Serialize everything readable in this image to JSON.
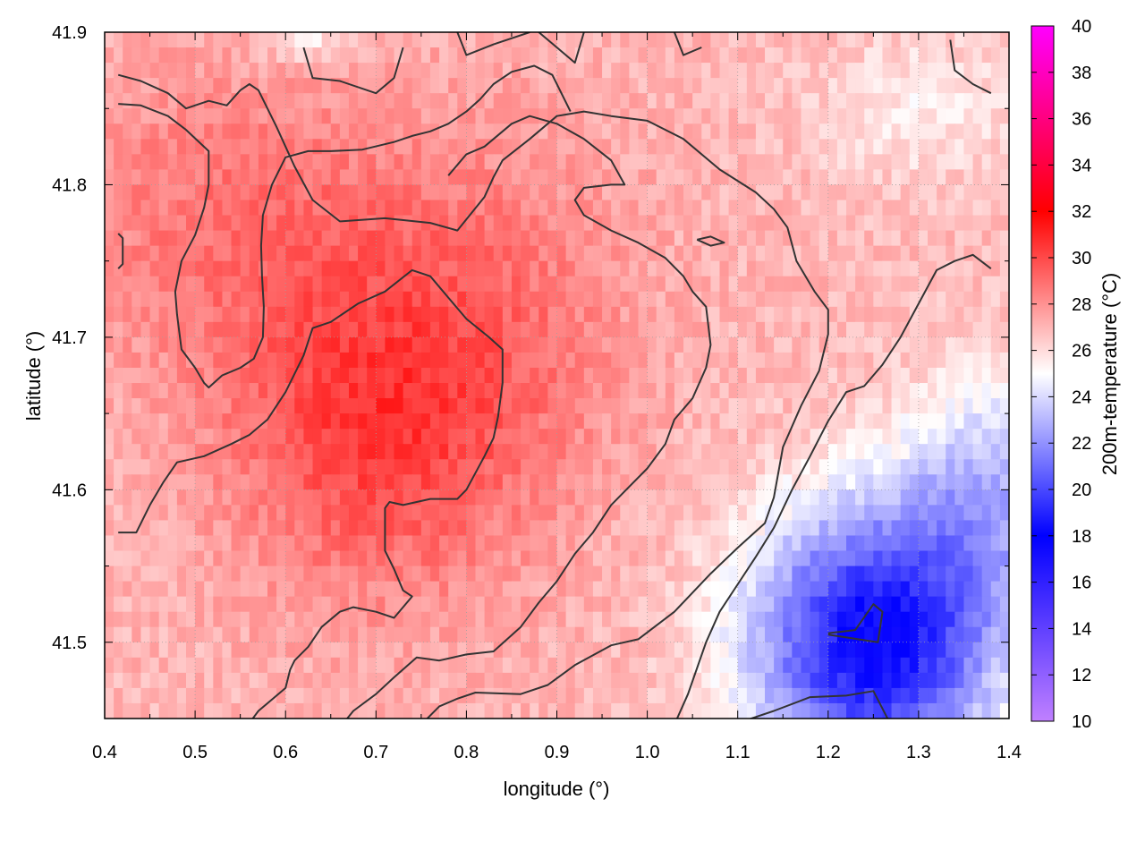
{
  "chart_data": {
    "type": "heatmap",
    "xlabel": "longitude (°)",
    "ylabel": "latitude (°)",
    "colorbar_label": "200m-temperature (°C)",
    "xlim": [
      0.4,
      1.4
    ],
    "ylim": [
      41.45,
      41.9
    ],
    "x_ticks": [
      "0.4",
      "0.5",
      "0.6",
      "0.7",
      "0.8",
      "0.9",
      "1.0",
      "1.1",
      "1.2",
      "1.3",
      "1.4"
    ],
    "y_ticks": [
      "41.5",
      "41.6",
      "41.7",
      "41.8",
      "41.9"
    ],
    "colorbar_range": [
      10,
      40
    ],
    "colorbar_ticks": [
      "10",
      "12",
      "14",
      "16",
      "18",
      "20",
      "22",
      "24",
      "26",
      "28",
      "30",
      "32",
      "34",
      "36",
      "38",
      "40"
    ],
    "colormap": [
      {
        "value": 10,
        "color": "#c080ff"
      },
      {
        "value": 18,
        "color": "#0000ff"
      },
      {
        "value": 25,
        "color": "#ffffff"
      },
      {
        "value": 32,
        "color": "#ff0000"
      },
      {
        "value": 40,
        "color": "#ff00ff"
      }
    ],
    "grid": true,
    "contour_color": "#333333",
    "contours": [
      [
        [
          0.415,
          41.872
        ],
        [
          0.44,
          41.868
        ],
        [
          0.47,
          41.86
        ],
        [
          0.49,
          41.85
        ],
        [
          0.515,
          41.855
        ],
        [
          0.535,
          41.852
        ],
        [
          0.55,
          41.862
        ],
        [
          0.56,
          41.866
        ],
        [
          0.57,
          41.862
        ],
        [
          0.59,
          41.838
        ],
        [
          0.61,
          41.812
        ],
        [
          0.63,
          41.79
        ],
        [
          0.66,
          41.776
        ],
        [
          0.71,
          41.778
        ],
        [
          0.76,
          41.775
        ],
        [
          0.79,
          41.77
        ],
        [
          0.82,
          41.792
        ],
        [
          0.83,
          41.805
        ],
        [
          0.84,
          41.816
        ],
        [
          0.87,
          41.83
        ],
        [
          0.9,
          41.845
        ],
        [
          0.93,
          41.848
        ],
        [
          0.96,
          41.845
        ],
        [
          1.0,
          41.842
        ],
        [
          1.04,
          41.83
        ],
        [
          1.08,
          41.81
        ],
        [
          1.12,
          41.795
        ],
        [
          1.14,
          41.784
        ],
        [
          1.155,
          41.772
        ],
        [
          1.165,
          41.75
        ],
        [
          1.185,
          41.73
        ],
        [
          1.2,
          41.718
        ],
        [
          1.2,
          41.702
        ],
        [
          1.19,
          41.678
        ],
        [
          1.17,
          41.655
        ],
        [
          1.15,
          41.628
        ],
        [
          1.14,
          41.595
        ],
        [
          1.13,
          41.578
        ],
        [
          1.1,
          41.562
        ],
        [
          1.07,
          41.545
        ],
        [
          1.03,
          41.52
        ],
        [
          0.99,
          41.502
        ],
        [
          0.96,
          41.498
        ],
        [
          0.92,
          41.485
        ],
        [
          0.89,
          41.472
        ],
        [
          0.86,
          41.466
        ],
        [
          0.81,
          41.467
        ],
        [
          0.79,
          41.463
        ],
        [
          0.77,
          41.458
        ],
        [
          0.75,
          41.446
        ]
      ],
      [
        [
          0.415,
          41.853
        ],
        [
          0.44,
          41.852
        ],
        [
          0.47,
          41.845
        ],
        [
          0.49,
          41.836
        ],
        [
          0.515,
          41.822
        ],
        [
          0.515,
          41.8
        ],
        [
          0.51,
          41.785
        ],
        [
          0.5,
          41.767
        ],
        [
          0.485,
          41.75
        ],
        [
          0.478,
          41.73
        ],
        [
          0.48,
          41.715
        ],
        [
          0.485,
          41.692
        ],
        [
          0.5,
          41.68
        ],
        [
          0.51,
          41.67
        ],
        [
          0.515,
          41.667
        ],
        [
          0.53,
          41.675
        ],
        [
          0.55,
          41.68
        ],
        [
          0.565,
          41.686
        ],
        [
          0.575,
          41.7
        ],
        [
          0.576,
          41.72
        ],
        [
          0.574,
          41.74
        ],
        [
          0.573,
          41.76
        ],
        [
          0.575,
          41.78
        ],
        [
          0.585,
          41.8
        ],
        [
          0.6,
          41.818
        ],
        [
          0.625,
          41.822
        ],
        [
          0.65,
          41.822
        ],
        [
          0.685,
          41.823
        ],
        [
          0.72,
          41.828
        ],
        [
          0.74,
          41.832
        ],
        [
          0.76,
          41.835
        ],
        [
          0.78,
          41.84
        ],
        [
          0.8,
          41.848
        ],
        [
          0.815,
          41.856
        ],
        [
          0.83,
          41.866
        ],
        [
          0.85,
          41.874
        ],
        [
          0.875,
          41.878
        ],
        [
          0.895,
          41.872
        ],
        [
          0.905,
          41.86
        ],
        [
          0.915,
          41.848
        ]
      ],
      [
        [
          0.415,
          41.768
        ],
        [
          0.42,
          41.765
        ],
        [
          0.42,
          41.748
        ],
        [
          0.415,
          41.745
        ]
      ],
      [
        [
          0.415,
          41.572
        ],
        [
          0.435,
          41.572
        ],
        [
          0.45,
          41.59
        ],
        [
          0.465,
          41.605
        ],
        [
          0.48,
          41.618
        ],
        [
          0.51,
          41.622
        ],
        [
          0.54,
          41.63
        ],
        [
          0.56,
          41.636
        ],
        [
          0.58,
          41.646
        ],
        [
          0.6,
          41.664
        ],
        [
          0.62,
          41.688
        ],
        [
          0.63,
          41.706
        ],
        [
          0.65,
          41.71
        ],
        [
          0.68,
          41.722
        ],
        [
          0.71,
          41.73
        ],
        [
          0.74,
          41.744
        ],
        [
          0.76,
          41.74
        ],
        [
          0.78,
          41.726
        ],
        [
          0.8,
          41.712
        ],
        [
          0.825,
          41.7
        ],
        [
          0.84,
          41.692
        ],
        [
          0.84,
          41.67
        ],
        [
          0.835,
          41.648
        ],
        [
          0.83,
          41.634
        ],
        [
          0.82,
          41.622
        ],
        [
          0.8,
          41.6
        ],
        [
          0.79,
          41.594
        ],
        [
          0.76,
          41.594
        ],
        [
          0.73,
          41.59
        ],
        [
          0.715,
          41.592
        ],
        [
          0.71,
          41.588
        ],
        [
          0.71,
          41.56
        ],
        [
          0.72,
          41.548
        ],
        [
          0.73,
          41.534
        ],
        [
          0.74,
          41.53
        ],
        [
          0.72,
          41.516
        ],
        [
          0.7,
          41.52
        ],
        [
          0.675,
          41.523
        ],
        [
          0.66,
          41.52
        ],
        [
          0.64,
          41.51
        ],
        [
          0.625,
          41.497
        ],
        [
          0.61,
          41.488
        ],
        [
          0.605,
          41.482
        ],
        [
          0.6,
          41.47
        ],
        [
          0.58,
          41.46
        ],
        [
          0.57,
          41.455
        ],
        [
          0.56,
          41.447
        ],
        [
          0.54,
          41.443
        ]
      ],
      [
        [
          0.66,
          41.444
        ],
        [
          0.675,
          41.455
        ],
        [
          0.7,
          41.466
        ],
        [
          0.72,
          41.477
        ],
        [
          0.745,
          41.49
        ],
        [
          0.77,
          41.488
        ],
        [
          0.8,
          41.492
        ],
        [
          0.83,
          41.494
        ],
        [
          0.86,
          41.51
        ],
        [
          0.88,
          41.526
        ],
        [
          0.9,
          41.54
        ],
        [
          0.92,
          41.558
        ],
        [
          0.94,
          41.572
        ],
        [
          0.96,
          41.59
        ],
        [
          0.98,
          41.602
        ],
        [
          1.0,
          41.614
        ],
        [
          1.02,
          41.63
        ],
        [
          1.03,
          41.646
        ],
        [
          1.05,
          41.66
        ],
        [
          1.065,
          41.68
        ],
        [
          1.07,
          41.695
        ],
        [
          1.065,
          41.72
        ],
        [
          1.05,
          41.73
        ],
        [
          1.04,
          41.74
        ],
        [
          1.02,
          41.752
        ],
        [
          0.99,
          41.762
        ],
        [
          0.96,
          41.77
        ],
        [
          0.93,
          41.78
        ],
        [
          0.92,
          41.79
        ],
        [
          0.93,
          41.798
        ],
        [
          0.96,
          41.8
        ],
        [
          0.975,
          41.8
        ],
        [
          0.96,
          41.816
        ],
        [
          0.93,
          41.83
        ],
        [
          0.9,
          41.84
        ],
        [
          0.87,
          41.845
        ],
        [
          0.85,
          41.84
        ],
        [
          0.82,
          41.825
        ],
        [
          0.8,
          41.82
        ],
        [
          0.78,
          41.806
        ]
      ],
      [
        [
          0.62,
          41.89
        ],
        [
          0.63,
          41.87
        ],
        [
          0.66,
          41.868
        ],
        [
          0.7,
          41.86
        ],
        [
          0.72,
          41.87
        ],
        [
          0.73,
          41.89
        ]
      ],
      [
        [
          0.79,
          41.9
        ],
        [
          0.8,
          41.885
        ],
        [
          0.83,
          41.892
        ],
        [
          0.87,
          41.9
        ]
      ],
      [
        [
          0.88,
          41.9
        ],
        [
          0.9,
          41.89
        ],
        [
          0.92,
          41.88
        ],
        [
          0.93,
          41.9
        ]
      ],
      [
        [
          1.03,
          41.9
        ],
        [
          1.04,
          41.885
        ],
        [
          1.06,
          41.89
        ]
      ],
      [
        [
          1.335,
          41.895
        ],
        [
          1.34,
          41.875
        ],
        [
          1.36,
          41.866
        ],
        [
          1.38,
          41.86
        ]
      ],
      [
        [
          1.03,
          41.446
        ],
        [
          1.045,
          41.466
        ],
        [
          1.065,
          41.5
        ],
        [
          1.08,
          41.52
        ],
        [
          1.1,
          41.538
        ],
        [
          1.12,
          41.556
        ],
        [
          1.14,
          41.575
        ],
        [
          1.16,
          41.6
        ],
        [
          1.18,
          41.622
        ],
        [
          1.2,
          41.645
        ],
        [
          1.22,
          41.664
        ],
        [
          1.24,
          41.668
        ],
        [
          1.26,
          41.682
        ],
        [
          1.28,
          41.7
        ],
        [
          1.3,
          41.722
        ],
        [
          1.32,
          41.744
        ],
        [
          1.34,
          41.75
        ],
        [
          1.36,
          41.754
        ],
        [
          1.38,
          41.745
        ]
      ],
      [
        [
          1.11,
          41.449
        ],
        [
          1.14,
          41.455
        ],
        [
          1.18,
          41.464
        ],
        [
          1.22,
          41.465
        ],
        [
          1.25,
          41.468
        ],
        [
          1.27,
          41.445
        ]
      ],
      [
        [
          1.2,
          41.506
        ],
        [
          1.23,
          41.508
        ],
        [
          1.25,
          41.525
        ],
        [
          1.26,
          41.52
        ],
        [
          1.255,
          41.5
        ],
        [
          1.2,
          41.505
        ]
      ],
      [
        [
          1.055,
          41.764
        ],
        [
          1.07,
          41.766
        ],
        [
          1.085,
          41.762
        ],
        [
          1.07,
          41.76
        ],
        [
          1.055,
          41.764
        ]
      ]
    ]
  }
}
